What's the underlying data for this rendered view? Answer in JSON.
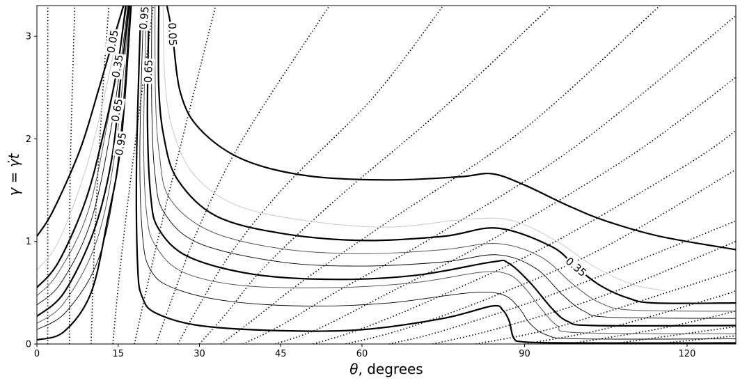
{
  "chart_data": {
    "type": "contour",
    "xlabel_symbol": "θ",
    "xlabel_text": ", degrees",
    "ylabel": "γ = γ̇t",
    "xlim": [
      0,
      129
    ],
    "ylim": [
      0,
      3.3
    ],
    "xticks": [
      0,
      15,
      30,
      45,
      60,
      90,
      120
    ],
    "yticks": [
      0,
      1,
      2,
      3
    ],
    "contour_labels": [
      {
        "text": "0.05",
        "x": 14.0,
        "y": 2.95,
        "rot": -80
      },
      {
        "text": "0.95",
        "x": 19.8,
        "y": 3.18,
        "rot": -85
      },
      {
        "text": "0.05",
        "x": 25.0,
        "y": 3.02,
        "rot": 88
      },
      {
        "text": "0.35",
        "x": 14.9,
        "y": 2.71,
        "rot": -80
      },
      {
        "text": "0.65",
        "x": 20.6,
        "y": 2.66,
        "rot": -88
      },
      {
        "text": "0.65",
        "x": 14.8,
        "y": 2.28,
        "rot": -80
      },
      {
        "text": "0.95",
        "x": 15.5,
        "y": 1.95,
        "rot": -80
      },
      {
        "text": "0.35",
        "x": 99.5,
        "y": 0.75,
        "rot": 40
      }
    ],
    "dotted_curves": [
      [
        [
          2.0,
          0
        ],
        [
          2.0,
          3.3
        ]
      ],
      [
        [
          6.0,
          0
        ],
        [
          6.1,
          1.5
        ],
        [
          6.6,
          2.6
        ],
        [
          7.0,
          3.3
        ]
      ],
      [
        [
          10.0,
          0
        ],
        [
          10.8,
          1.2
        ],
        [
          12.2,
          2.5
        ],
        [
          13.3,
          3.3
        ]
      ],
      [
        [
          14.0,
          0
        ],
        [
          15.5,
          0.8
        ],
        [
          18.0,
          1.9
        ],
        [
          21.5,
          3.3
        ]
      ],
      [
        [
          18.0,
          0
        ],
        [
          20.5,
          0.6
        ],
        [
          24.5,
          1.5
        ],
        [
          33.0,
          3.3
        ]
      ],
      [
        [
          22.0,
          0
        ],
        [
          25.0,
          0.45
        ],
        [
          30.0,
          1.15
        ],
        [
          38.0,
          2.0
        ],
        [
          54.0,
          3.3
        ]
      ],
      [
        [
          26.0,
          0
        ],
        [
          30.0,
          0.38
        ],
        [
          36.0,
          0.9
        ],
        [
          46.0,
          1.55
        ],
        [
          62.0,
          2.4
        ],
        [
          75.0,
          3.3
        ]
      ],
      [
        [
          30.0,
          0
        ],
        [
          35.0,
          0.3
        ],
        [
          42.0,
          0.75
        ],
        [
          55.0,
          1.4
        ],
        [
          75.0,
          2.3
        ],
        [
          95.0,
          3.3
        ]
      ],
      [
        [
          34.0,
          0
        ],
        [
          40.0,
          0.24
        ],
        [
          50.0,
          0.65
        ],
        [
          65.0,
          1.2
        ],
        [
          90.0,
          2.1
        ],
        [
          115.0,
          3.3
        ]
      ],
      [
        [
          38.0,
          0
        ],
        [
          45.0,
          0.18
        ],
        [
          55.0,
          0.5
        ],
        [
          75.0,
          1.1
        ],
        [
          100.0,
          1.95
        ],
        [
          129.0,
          3.2
        ]
      ],
      [
        [
          44.0,
          0
        ],
        [
          52.0,
          0.15
        ],
        [
          65.0,
          0.5
        ],
        [
          85.0,
          1.05
        ],
        [
          110.0,
          1.85
        ],
        [
          129.0,
          2.6
        ]
      ],
      [
        [
          51.0,
          0
        ],
        [
          60.0,
          0.15
        ],
        [
          75.0,
          0.48
        ],
        [
          95.0,
          0.98
        ],
        [
          120.0,
          1.75
        ],
        [
          129.0,
          2.08
        ]
      ],
      [
        [
          57.0,
          0
        ],
        [
          68.0,
          0.15
        ],
        [
          85.0,
          0.48
        ],
        [
          105.0,
          0.95
        ],
        [
          129.0,
          1.7
        ]
      ],
      [
        [
          65.0,
          0
        ],
        [
          75.0,
          0.13
        ],
        [
          95.0,
          0.48
        ],
        [
          115.0,
          0.9
        ],
        [
          129.0,
          1.2
        ]
      ],
      [
        [
          73.0,
          0
        ],
        [
          85.0,
          0.15
        ],
        [
          105.0,
          0.48
        ],
        [
          129.0,
          1.0
        ]
      ],
      [
        [
          81.0,
          0
        ],
        [
          95.0,
          0.15
        ],
        [
          115.0,
          0.48
        ],
        [
          129.0,
          0.72
        ]
      ],
      [
        [
          90.0,
          0
        ],
        [
          105.0,
          0.15
        ],
        [
          125.0,
          0.45
        ],
        [
          129.0,
          0.52
        ]
      ],
      [
        [
          98.0,
          0
        ],
        [
          115.0,
          0.15
        ],
        [
          129.0,
          0.32
        ]
      ],
      [
        [
          106.0,
          0
        ],
        [
          125.0,
          0.14
        ],
        [
          129.0,
          0.17
        ]
      ],
      [
        [
          114.0,
          0
        ],
        [
          129.0,
          0.08
        ]
      ]
    ],
    "contour_curves": [
      {
        "level": "0.05",
        "style": "thick",
        "pts": [
          [
            0,
            1.05
          ],
          [
            3.0,
            1.3
          ],
          [
            8.0,
            1.9
          ],
          [
            11.5,
            2.5
          ],
          [
            14.0,
            2.95
          ],
          [
            16.0,
            3.3
          ]
        ]
      },
      {
        "level": "0.35",
        "style": "thick",
        "pts": [
          [
            0,
            0.55
          ],
          [
            4.0,
            0.8
          ],
          [
            9.0,
            1.4
          ],
          [
            12.5,
            2.1
          ],
          [
            14.9,
            2.71
          ],
          [
            16.4,
            3.3
          ]
        ]
      },
      {
        "level": "0.25",
        "style": "light",
        "pts": [
          [
            0,
            0.72
          ],
          [
            4.0,
            1.0
          ],
          [
            9.0,
            1.7
          ],
          [
            12.8,
            2.5
          ],
          [
            15.8,
            3.3
          ]
        ]
      },
      {
        "level": "0.45",
        "style": "medium",
        "pts": [
          [
            0,
            0.47
          ],
          [
            4.0,
            0.7
          ],
          [
            9.5,
            1.3
          ],
          [
            13.5,
            2.3
          ],
          [
            16.6,
            3.3
          ]
        ]
      },
      {
        "level": "0.55",
        "style": "thin",
        "pts": [
          [
            0,
            0.38
          ],
          [
            4.5,
            0.6
          ],
          [
            10.0,
            1.2
          ],
          [
            14.0,
            2.2
          ],
          [
            16.8,
            3.3
          ]
        ]
      },
      {
        "level": "0.65",
        "style": "thick",
        "pts": [
          [
            0,
            0.27
          ],
          [
            5.0,
            0.5
          ],
          [
            10.5,
            1.1
          ],
          [
            13.8,
            1.8
          ],
          [
            15.5,
            2.6
          ],
          [
            17.0,
            3.3
          ]
        ]
      },
      {
        "level": "0.75",
        "style": "medium",
        "pts": [
          [
            0,
            0.2
          ],
          [
            5.0,
            0.4
          ],
          [
            11.0,
            1.0
          ],
          [
            14.5,
            1.9
          ],
          [
            17.1,
            3.3
          ]
        ]
      },
      {
        "level": "0.85",
        "style": "thin",
        "pts": [
          [
            0,
            0.14
          ],
          [
            5.5,
            0.32
          ],
          [
            11.5,
            0.85
          ],
          [
            15.0,
            1.8
          ],
          [
            17.2,
            3.3
          ]
        ]
      },
      {
        "level": "0.95",
        "style": "thick",
        "pts": [
          [
            0,
            0.04
          ],
          [
            5.0,
            0.12
          ],
          [
            10.0,
            0.5
          ],
          [
            13.0,
            1.2
          ],
          [
            15.5,
            1.95
          ],
          [
            17.4,
            3.3
          ]
        ]
      },
      {
        "level": "0.95",
        "style": "thick",
        "pts": [
          [
            19.2,
            3.3
          ],
          [
            18.4,
            1.8
          ],
          [
            18.6,
            0.75
          ],
          [
            19.5,
            0.45
          ],
          [
            22,
            0.3
          ],
          [
            30,
            0.18
          ],
          [
            45,
            0.13
          ],
          [
            60,
            0.14
          ],
          [
            75,
            0.25
          ],
          [
            84,
            0.37
          ],
          [
            86,
            0.33
          ],
          [
            87.2,
            0.22
          ],
          [
            88,
            0.06
          ],
          [
            90,
            0.02
          ],
          [
            100,
            0.01
          ],
          [
            129,
            0.01
          ]
        ]
      },
      {
        "level": "0.85",
        "style": "thin",
        "pts": [
          [
            19.7,
            3.3
          ],
          [
            19.0,
            1.9
          ],
          [
            19.5,
            1.05
          ],
          [
            21,
            0.72
          ],
          [
            25,
            0.55
          ],
          [
            35,
            0.42
          ],
          [
            50,
            0.37
          ],
          [
            65,
            0.4
          ],
          [
            80,
            0.5
          ],
          [
            86,
            0.48
          ],
          [
            89,
            0.35
          ],
          [
            91,
            0.2
          ],
          [
            94,
            0.09
          ],
          [
            100,
            0.05
          ],
          [
            129,
            0.05
          ]
        ]
      },
      {
        "level": "0.75",
        "style": "medium",
        "pts": [
          [
            20.2,
            3.3
          ],
          [
            19.7,
            2.0
          ],
          [
            20.3,
            1.25
          ],
          [
            22,
            0.95
          ],
          [
            27,
            0.7
          ],
          [
            38,
            0.57
          ],
          [
            55,
            0.55
          ],
          [
            70,
            0.6
          ],
          [
            82,
            0.7
          ],
          [
            87,
            0.68
          ],
          [
            90,
            0.55
          ],
          [
            93,
            0.35
          ],
          [
            96,
            0.18
          ],
          [
            100,
            0.11
          ],
          [
            129,
            0.1
          ]
        ]
      },
      {
        "level": "0.65",
        "style": "thick",
        "pts": [
          [
            20.7,
            3.3
          ],
          [
            20.4,
            2.2
          ],
          [
            21.0,
            1.45
          ],
          [
            22.5,
            1.12
          ],
          [
            28,
            0.85
          ],
          [
            40,
            0.68
          ],
          [
            55,
            0.63
          ],
          [
            70,
            0.67
          ],
          [
            84,
            0.8
          ],
          [
            87,
            0.79
          ],
          [
            91,
            0.6
          ],
          [
            95,
            0.35
          ],
          [
            98,
            0.22
          ],
          [
            103,
            0.18
          ],
          [
            129,
            0.18
          ]
        ]
      },
      {
        "level": "0.55",
        "style": "thin",
        "pts": [
          [
            21.2,
            3.3
          ],
          [
            21.2,
            2.3
          ],
          [
            21.8,
            1.65
          ],
          [
            23.5,
            1.28
          ],
          [
            30,
            0.98
          ],
          [
            45,
            0.8
          ],
          [
            60,
            0.76
          ],
          [
            75,
            0.8
          ],
          [
            85,
            0.87
          ],
          [
            92,
            0.74
          ],
          [
            97,
            0.48
          ],
          [
            101,
            0.32
          ],
          [
            106,
            0.26
          ],
          [
            129,
            0.25
          ]
        ]
      },
      {
        "level": "0.45",
        "style": "medium",
        "pts": [
          [
            21.8,
            3.3
          ],
          [
            21.9,
            2.4
          ],
          [
            22.6,
            1.85
          ],
          [
            24.5,
            1.42
          ],
          [
            32,
            1.1
          ],
          [
            45,
            0.93
          ],
          [
            60,
            0.88
          ],
          [
            75,
            0.92
          ],
          [
            85,
            0.98
          ],
          [
            93,
            0.85
          ],
          [
            99,
            0.58
          ],
          [
            104,
            0.4
          ],
          [
            110,
            0.33
          ],
          [
            129,
            0.32
          ]
        ]
      },
      {
        "level": "0.35",
        "style": "thick",
        "pts": [
          [
            22.5,
            3.3
          ],
          [
            22.5,
            2.5
          ],
          [
            23.5,
            2.0
          ],
          [
            26,
            1.6
          ],
          [
            33,
            1.25
          ],
          [
            45,
            1.08
          ],
          [
            60,
            1.01
          ],
          [
            75,
            1.05
          ],
          [
            85,
            1.13
          ],
          [
            95,
            0.95
          ],
          [
            99.5,
            0.75
          ],
          [
            104,
            0.57
          ],
          [
            109,
            0.45
          ],
          [
            114,
            0.4
          ],
          [
            129,
            0.4
          ]
        ]
      },
      {
        "level": "0.25",
        "style": "light",
        "pts": [
          [
            23.3,
            3.3
          ],
          [
            23.6,
            2.6
          ],
          [
            25,
            2.1
          ],
          [
            29,
            1.65
          ],
          [
            37,
            1.35
          ],
          [
            50,
            1.2
          ],
          [
            65,
            1.14
          ],
          [
            80,
            1.22
          ],
          [
            88,
            1.2
          ],
          [
            96,
            1.0
          ],
          [
            103,
            0.75
          ],
          [
            110,
            0.58
          ],
          [
            116,
            0.52
          ]
        ]
      },
      {
        "level": "0.05",
        "style": "thick",
        "pts": [
          [
            24.0,
            3.3
          ],
          [
            25.0,
            3.02
          ],
          [
            26.5,
            2.45
          ],
          [
            30,
            2.1
          ],
          [
            38,
            1.8
          ],
          [
            50,
            1.64
          ],
          [
            65,
            1.6
          ],
          [
            78,
            1.63
          ],
          [
            84,
            1.66
          ],
          [
            90,
            1.55
          ],
          [
            98,
            1.35
          ],
          [
            105,
            1.2
          ],
          [
            115,
            1.05
          ],
          [
            129,
            0.92
          ]
        ]
      }
    ]
  }
}
